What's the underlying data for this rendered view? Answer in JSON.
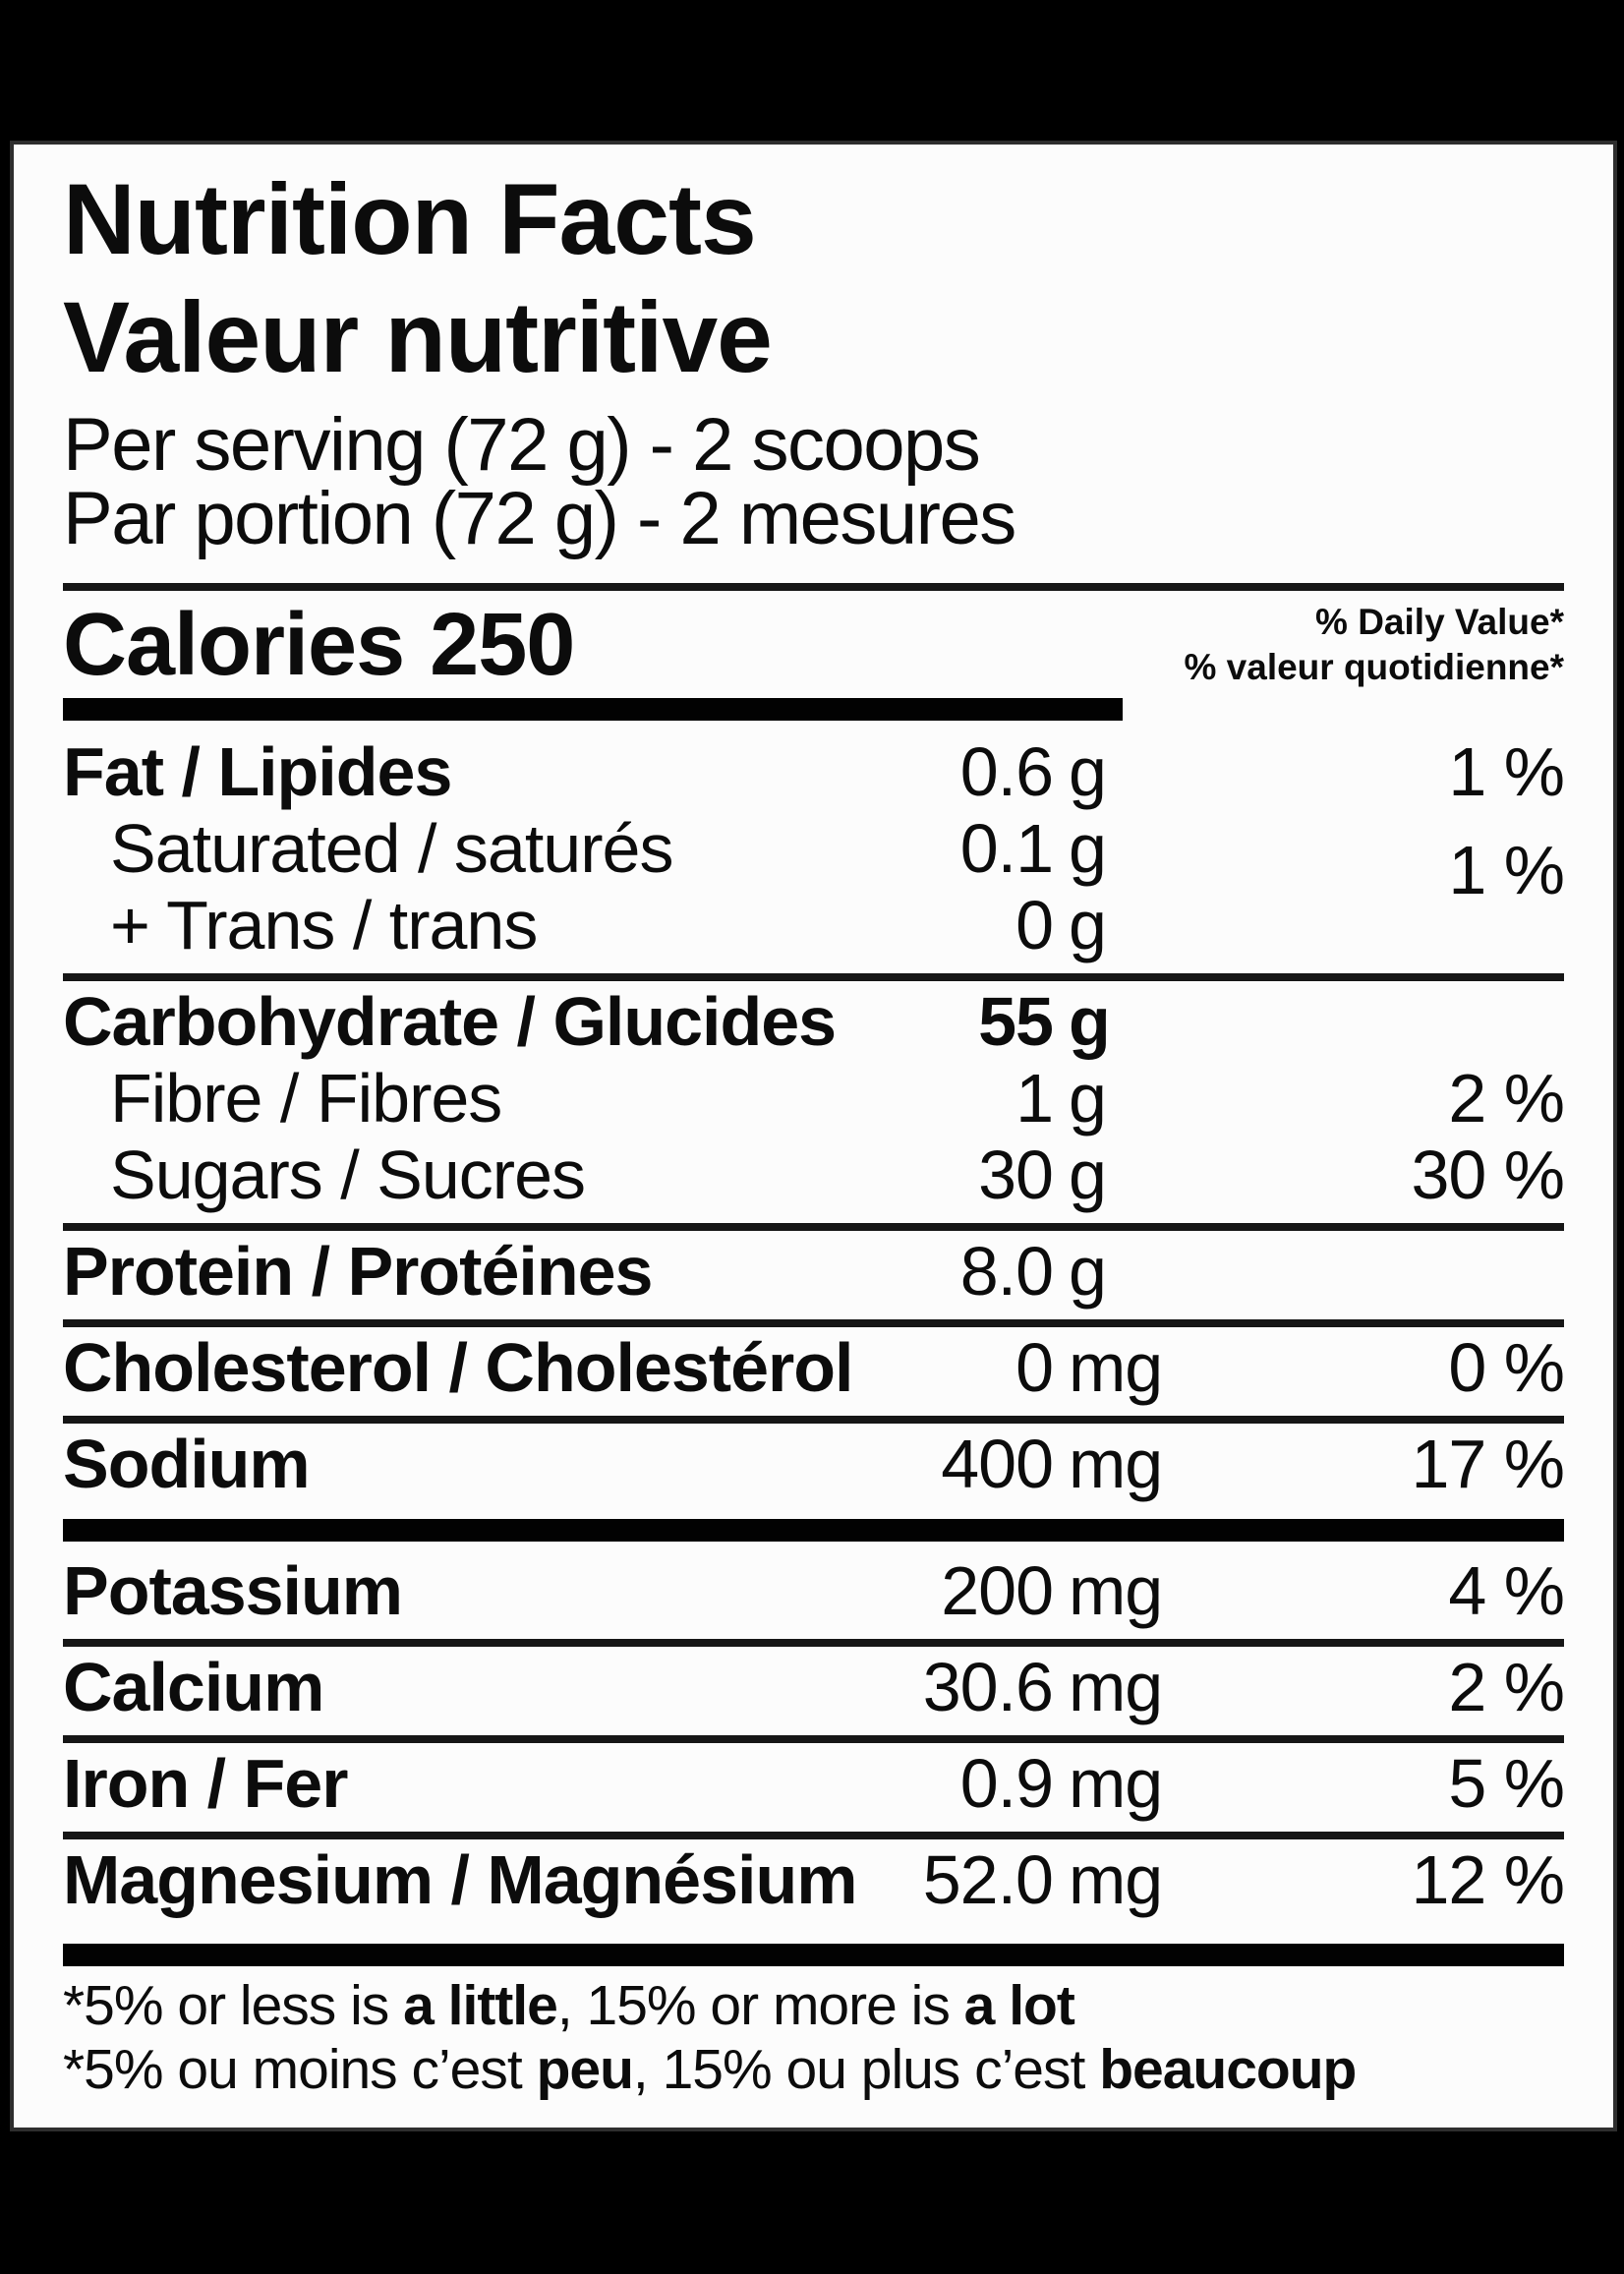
{
  "colors": {
    "page_bg": "#000000",
    "label_bg": "#fcfcfc",
    "text": "#0c0c0c"
  },
  "label": {
    "title_en": "Nutrition Facts",
    "title_fr": "Valeur nutritive",
    "serving_en": "Per serving (72 g) - 2 scoops",
    "serving_fr": "Par portion (72 g) - 2 mesures",
    "calories_label": "Calories",
    "calories_value": "250",
    "dv_header_en": "% Daily Value*",
    "dv_header_fr": "% valeur quotidienne*",
    "rows": [
      {
        "label": "Fat / Lipides",
        "amount": "0.6",
        "unit": "g",
        "dv": "1 %"
      },
      {
        "label": "Saturated / saturés",
        "amount": "0.1",
        "unit": "g",
        "dv": "1 %"
      },
      {
        "label": "+ Trans / trans",
        "amount": "0",
        "unit": "g",
        "dv": ""
      },
      {
        "label": "Carbohydrate / Glucides",
        "amount": "55",
        "unit": "g",
        "dv": ""
      },
      {
        "label": "Fibre / Fibres",
        "amount": "1",
        "unit": "g",
        "dv": "2 %"
      },
      {
        "label": "Sugars / Sucres",
        "amount": "30",
        "unit": "g",
        "dv": "30 %"
      },
      {
        "label": "Protein / Protéines",
        "amount": "8.0",
        "unit": "g",
        "dv": ""
      },
      {
        "label": "Cholesterol / Cholestérol",
        "amount": "0",
        "unit": "mg",
        "dv": "0 %"
      },
      {
        "label": "Sodium",
        "amount": "400",
        "unit": "mg",
        "dv": "17 %"
      },
      {
        "label": "Potassium",
        "amount": "200",
        "unit": "mg",
        "dv": "4 %"
      },
      {
        "label": "Calcium",
        "amount": "30.6",
        "unit": "mg",
        "dv": "2 %"
      },
      {
        "label": "Iron / Fer",
        "amount": "0.9",
        "unit": "mg",
        "dv": "5 %"
      },
      {
        "label": "Magnesium / Magnésium",
        "amount": "52.0",
        "unit": "mg",
        "dv": "12 %"
      }
    ],
    "footnote_en": {
      "p1": "*5% or less is ",
      "b1": "a little",
      "p2": ", 15% or more is ",
      "b2": "a lot"
    },
    "footnote_fr": {
      "p1": "*5% ou moins c’est ",
      "b1": "peu",
      "p2": ", 15% ou plus c’est ",
      "b2": "beaucoup"
    }
  }
}
